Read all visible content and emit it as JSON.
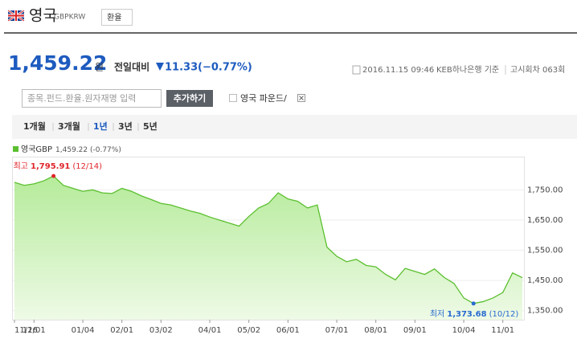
{
  "header": {
    "country": "영국",
    "code": "GBPKRW",
    "button": "환율",
    "price": "1,459.22",
    "unit": "원",
    "change_label": "전일대비",
    "change": "11.33",
    "change_pct": "(−0.77%)",
    "datetime": "2016.11.15 09:46",
    "source": "KEB하나은행 기준",
    "round": "고시회차 063회"
  },
  "search": {
    "placeholder": "종목.펀드.환율.원자재명 입력",
    "button": "추가하기",
    "checkbox": "영국 파운드/"
  },
  "tabs": [
    "1개월",
    "3개월",
    "1년",
    "3년",
    "5년"
  ],
  "chart_data": {
    "type": "area",
    "categories": [
      "11/16",
      null,
      "12/01",
      null,
      null,
      null,
      null,
      "01/04",
      null,
      null,
      null,
      "02/01",
      null,
      null,
      null,
      "03/02",
      null,
      null,
      null,
      null,
      "04/01",
      null,
      null,
      null,
      "05/02",
      null,
      null,
      null,
      "06/01",
      null,
      null,
      null,
      null,
      "07/01",
      null,
      null,
      null,
      "08/01",
      null,
      null,
      null,
      "09/01",
      null,
      null,
      null,
      null,
      "10/04",
      null,
      null,
      null,
      "11/01",
      null,
      null
    ],
    "series": [
      {
        "name": "영국GBP",
        "color": "#5bbf2f",
        "legend_value": "1,459.22 (-0.77%)",
        "values": [
          1775,
          1765,
          1770,
          1780,
          1795.91,
          1765,
          1755,
          1745,
          1750,
          1740,
          1738,
          1755,
          1745,
          1730,
          1718,
          1705,
          1700,
          1690,
          1680,
          1672,
          1660,
          1650,
          1640,
          1630,
          1662,
          1690,
          1705,
          1740,
          1720,
          1712,
          1690,
          1700,
          1560,
          1530,
          1512,
          1520,
          1500,
          1495,
          1470,
          1452,
          1490,
          1480,
          1470,
          1488,
          1460,
          1440,
          1392,
          1373.68,
          1380,
          1392,
          1410,
          1475,
          1459.22
        ]
      }
    ],
    "annotations": [
      {
        "text": "최고",
        "value": 1795.91,
        "label": "1,795.91",
        "date": "(12/14)",
        "color": "#e0262b"
      },
      {
        "text": "최저",
        "value": 1373.68,
        "label": "1,373.68",
        "date": "(10/12)",
        "color": "#2a6bd1"
      }
    ],
    "ylim": [
      1320,
      1860
    ],
    "yticks": [
      {
        "value": 1350,
        "label": "1,350.00"
      },
      {
        "value": 1450,
        "label": "1,450.00"
      },
      {
        "value": 1550,
        "label": "1,550.00"
      },
      {
        "value": 1650,
        "label": "1,650.00"
      },
      {
        "value": 1750,
        "label": "1,750.00"
      }
    ],
    "grid": true
  }
}
